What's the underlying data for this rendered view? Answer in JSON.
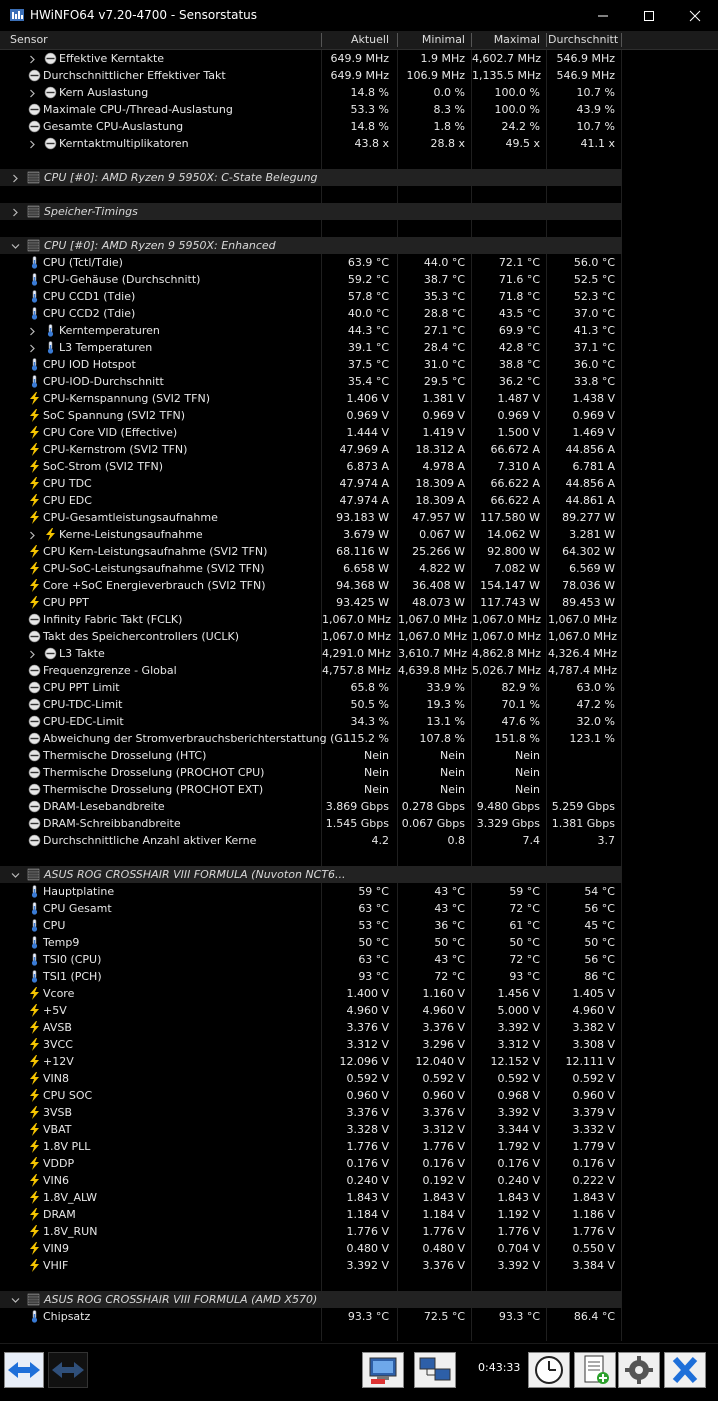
{
  "window": {
    "title": "HWiNFO64 v7.20-4700 - Sensorstatus"
  },
  "columns": [
    "Sensor",
    "Aktuell",
    "Minimal",
    "Maximal",
    "Durchschnitt"
  ],
  "rows": [
    {
      "type": "sensor",
      "indent": 2,
      "expand": true,
      "icon": "clock",
      "name": "Effektive Kerntakte",
      "values": [
        "649.9 MHz",
        "1.9 MHz",
        "4,602.7 MHz",
        "546.9 MHz"
      ]
    },
    {
      "type": "sensor",
      "indent": 1,
      "expand": false,
      "icon": "clock",
      "name": "Durchschnittlicher Effektiver Takt",
      "values": [
        "649.9 MHz",
        "106.9 MHz",
        "1,135.5 MHz",
        "546.9 MHz"
      ]
    },
    {
      "type": "sensor",
      "indent": 2,
      "expand": true,
      "icon": "clock",
      "name": "Kern Auslastung",
      "values": [
        "14.8 %",
        "0.0 %",
        "100.0 %",
        "10.7 %"
      ]
    },
    {
      "type": "sensor",
      "indent": 1,
      "expand": false,
      "icon": "clock",
      "name": "Maximale CPU-/Thread-Auslastung",
      "values": [
        "53.3 %",
        "8.3 %",
        "100.0 %",
        "43.9 %"
      ]
    },
    {
      "type": "sensor",
      "indent": 1,
      "expand": false,
      "icon": "clock",
      "name": "Gesamte CPU-Auslastung",
      "values": [
        "14.8 %",
        "1.8 %",
        "24.2 %",
        "10.7 %"
      ]
    },
    {
      "type": "sensor",
      "indent": 2,
      "expand": true,
      "icon": "clock",
      "name": "Kerntaktmultiplikatoren",
      "values": [
        "43.8 x",
        "28.8 x",
        "49.5 x",
        "41.1 x"
      ]
    },
    {
      "type": "blank"
    },
    {
      "type": "group",
      "expanded": false,
      "name": "CPU [#0]: AMD Ryzen 9 5950X: C-State Belegung"
    },
    {
      "type": "blank"
    },
    {
      "type": "group",
      "expanded": false,
      "name": "Speicher-Timings"
    },
    {
      "type": "blank"
    },
    {
      "type": "group",
      "expanded": true,
      "name": "CPU [#0]: AMD Ryzen 9 5950X: Enhanced"
    },
    {
      "type": "sensor",
      "indent": 1,
      "expand": false,
      "icon": "temp",
      "name": "CPU (Tctl/Tdie)",
      "values": [
        "63.9 °C",
        "44.0 °C",
        "72.1 °C",
        "56.0 °C"
      ]
    },
    {
      "type": "sensor",
      "indent": 1,
      "expand": false,
      "icon": "temp",
      "name": "CPU-Gehäuse (Durchschnitt)",
      "values": [
        "59.2 °C",
        "38.7 °C",
        "71.6 °C",
        "52.5 °C"
      ]
    },
    {
      "type": "sensor",
      "indent": 1,
      "expand": false,
      "icon": "temp",
      "name": "CPU CCD1 (Tdie)",
      "values": [
        "57.8 °C",
        "35.3 °C",
        "71.8 °C",
        "52.3 °C"
      ]
    },
    {
      "type": "sensor",
      "indent": 1,
      "expand": false,
      "icon": "temp",
      "name": "CPU CCD2 (Tdie)",
      "values": [
        "40.0 °C",
        "28.8 °C",
        "43.5 °C",
        "37.0 °C"
      ]
    },
    {
      "type": "sensor",
      "indent": 2,
      "expand": true,
      "icon": "temp",
      "name": "Kerntemperaturen",
      "values": [
        "44.3 °C",
        "27.1 °C",
        "69.9 °C",
        "41.3 °C"
      ]
    },
    {
      "type": "sensor",
      "indent": 2,
      "expand": true,
      "icon": "temp",
      "name": "L3 Temperaturen",
      "values": [
        "39.1 °C",
        "28.4 °C",
        "42.8 °C",
        "37.1 °C"
      ]
    },
    {
      "type": "sensor",
      "indent": 1,
      "expand": false,
      "icon": "temp",
      "name": "CPU IOD Hotspot",
      "values": [
        "37.5 °C",
        "31.0 °C",
        "38.8 °C",
        "36.0 °C"
      ]
    },
    {
      "type": "sensor",
      "indent": 1,
      "expand": false,
      "icon": "temp",
      "name": "CPU-IOD-Durchschnitt",
      "values": [
        "35.4 °C",
        "29.5 °C",
        "36.2 °C",
        "33.8 °C"
      ]
    },
    {
      "type": "sensor",
      "indent": 1,
      "expand": false,
      "icon": "bolt",
      "name": "CPU-Kernspannung (SVI2 TFN)",
      "values": [
        "1.406 V",
        "1.381 V",
        "1.487 V",
        "1.438 V"
      ]
    },
    {
      "type": "sensor",
      "indent": 1,
      "expand": false,
      "icon": "bolt",
      "name": "SoC Spannung (SVI2 TFN)",
      "values": [
        "0.969 V",
        "0.969 V",
        "0.969 V",
        "0.969 V"
      ]
    },
    {
      "type": "sensor",
      "indent": 1,
      "expand": false,
      "icon": "bolt",
      "name": "CPU Core VID (Effective)",
      "values": [
        "1.444 V",
        "1.419 V",
        "1.500 V",
        "1.469 V"
      ]
    },
    {
      "type": "sensor",
      "indent": 1,
      "expand": false,
      "icon": "bolt",
      "name": "CPU-Kernstrom (SVI2 TFN)",
      "values": [
        "47.969 A",
        "18.312 A",
        "66.672 A",
        "44.856 A"
      ]
    },
    {
      "type": "sensor",
      "indent": 1,
      "expand": false,
      "icon": "bolt",
      "name": "SoC-Strom (SVI2 TFN)",
      "values": [
        "6.873 A",
        "4.978 A",
        "7.310 A",
        "6.781 A"
      ]
    },
    {
      "type": "sensor",
      "indent": 1,
      "expand": false,
      "icon": "bolt",
      "name": "CPU TDC",
      "values": [
        "47.974 A",
        "18.309 A",
        "66.622 A",
        "44.856 A"
      ]
    },
    {
      "type": "sensor",
      "indent": 1,
      "expand": false,
      "icon": "bolt",
      "name": "CPU EDC",
      "values": [
        "47.974 A",
        "18.309 A",
        "66.622 A",
        "44.861 A"
      ]
    },
    {
      "type": "sensor",
      "indent": 1,
      "expand": false,
      "icon": "bolt",
      "name": "CPU-Gesamtleistungsaufnahme",
      "values": [
        "93.183 W",
        "47.957 W",
        "117.580 W",
        "89.277 W"
      ]
    },
    {
      "type": "sensor",
      "indent": 2,
      "expand": true,
      "icon": "bolt",
      "name": "Kerne-Leistungsaufnahme",
      "values": [
        "3.679 W",
        "0.067 W",
        "14.062 W",
        "3.281 W"
      ]
    },
    {
      "type": "sensor",
      "indent": 1,
      "expand": false,
      "icon": "bolt",
      "name": "CPU Kern-Leistungsaufnahme (SVI2 TFN)",
      "values": [
        "68.116 W",
        "25.266 W",
        "92.800 W",
        "64.302 W"
      ]
    },
    {
      "type": "sensor",
      "indent": 1,
      "expand": false,
      "icon": "bolt",
      "name": "CPU-SoC-Leistungsaufnahme (SVI2 TFN)",
      "values": [
        "6.658 W",
        "4.822 W",
        "7.082 W",
        "6.569 W"
      ]
    },
    {
      "type": "sensor",
      "indent": 1,
      "expand": false,
      "icon": "bolt",
      "name": "Core +SoC Energieverbrauch (SVI2 TFN)",
      "values": [
        "94.368 W",
        "36.408 W",
        "154.147 W",
        "78.036 W"
      ]
    },
    {
      "type": "sensor",
      "indent": 1,
      "expand": false,
      "icon": "bolt",
      "name": "CPU PPT",
      "values": [
        "93.425 W",
        "48.073 W",
        "117.743 W",
        "89.453 W"
      ]
    },
    {
      "type": "sensor",
      "indent": 1,
      "expand": false,
      "icon": "clock",
      "name": "Infinity Fabric Takt (FCLK)",
      "values": [
        "1,067.0 MHz",
        "1,067.0 MHz",
        "1,067.0 MHz",
        "1,067.0 MHz"
      ]
    },
    {
      "type": "sensor",
      "indent": 1,
      "expand": false,
      "icon": "clock",
      "name": "Takt des Speichercontrollers (UCLK)",
      "values": [
        "1,067.0 MHz",
        "1,067.0 MHz",
        "1,067.0 MHz",
        "1,067.0 MHz"
      ]
    },
    {
      "type": "sensor",
      "indent": 2,
      "expand": true,
      "icon": "clock",
      "name": "L3 Takte",
      "values": [
        "4,291.0 MHz",
        "3,610.7 MHz",
        "4,862.8 MHz",
        "4,326.4 MHz"
      ]
    },
    {
      "type": "sensor",
      "indent": 1,
      "expand": false,
      "icon": "clock",
      "name": "Frequenzgrenze - Global",
      "values": [
        "4,757.8 MHz",
        "4,639.8 MHz",
        "5,026.7 MHz",
        "4,787.4 MHz"
      ]
    },
    {
      "type": "sensor",
      "indent": 1,
      "expand": false,
      "icon": "clock",
      "name": "CPU PPT Limit",
      "values": [
        "65.8 %",
        "33.9 %",
        "82.9 %",
        "63.0 %"
      ]
    },
    {
      "type": "sensor",
      "indent": 1,
      "expand": false,
      "icon": "clock",
      "name": "CPU-TDC-Limit",
      "values": [
        "50.5 %",
        "19.3 %",
        "70.1 %",
        "47.2 %"
      ]
    },
    {
      "type": "sensor",
      "indent": 1,
      "expand": false,
      "icon": "clock",
      "name": "CPU-EDC-Limit",
      "values": [
        "34.3 %",
        "13.1 %",
        "47.6 %",
        "32.0 %"
      ]
    },
    {
      "type": "sensor",
      "indent": 1,
      "expand": false,
      "icon": "clock",
      "name": "Abweichung der Stromverbrauchsberichterstattung (G...",
      "values": [
        "115.2 %",
        "107.8 %",
        "151.8 %",
        "123.1 %"
      ]
    },
    {
      "type": "sensor",
      "indent": 1,
      "expand": false,
      "icon": "clock",
      "name": "Thermische Drosselung (HTC)",
      "values": [
        "Nein",
        "Nein",
        "Nein",
        ""
      ]
    },
    {
      "type": "sensor",
      "indent": 1,
      "expand": false,
      "icon": "clock",
      "name": "Thermische Drosselung (PROCHOT CPU)",
      "values": [
        "Nein",
        "Nein",
        "Nein",
        ""
      ]
    },
    {
      "type": "sensor",
      "indent": 1,
      "expand": false,
      "icon": "clock",
      "name": "Thermische Drosselung (PROCHOT EXT)",
      "values": [
        "Nein",
        "Nein",
        "Nein",
        ""
      ]
    },
    {
      "type": "sensor",
      "indent": 1,
      "expand": false,
      "icon": "clock",
      "name": "DRAM-Lesebandbreite",
      "values": [
        "3.869 Gbps",
        "0.278 Gbps",
        "9.480 Gbps",
        "5.259 Gbps"
      ]
    },
    {
      "type": "sensor",
      "indent": 1,
      "expand": false,
      "icon": "clock",
      "name": "DRAM-Schreibbandbreite",
      "values": [
        "1.545 Gbps",
        "0.067 Gbps",
        "3.329 Gbps",
        "1.381 Gbps"
      ]
    },
    {
      "type": "sensor",
      "indent": 1,
      "expand": false,
      "icon": "clock",
      "name": "Durchschnittliche Anzahl aktiver Kerne",
      "values": [
        "4.2",
        "0.8",
        "7.4",
        "3.7"
      ]
    },
    {
      "type": "blank"
    },
    {
      "type": "group",
      "expanded": true,
      "name": "ASUS ROG CROSSHAIR VIII FORMULA (Nuvoton NCT6..."
    },
    {
      "type": "sensor",
      "indent": 1,
      "expand": false,
      "icon": "temp",
      "name": "Hauptplatine",
      "values": [
        "59 °C",
        "43 °C",
        "59 °C",
        "54 °C"
      ]
    },
    {
      "type": "sensor",
      "indent": 1,
      "expand": false,
      "icon": "temp",
      "name": "CPU Gesamt",
      "values": [
        "63 °C",
        "43 °C",
        "72 °C",
        "56 °C"
      ]
    },
    {
      "type": "sensor",
      "indent": 1,
      "expand": false,
      "icon": "temp",
      "name": "CPU",
      "values": [
        "53 °C",
        "36 °C",
        "61 °C",
        "45 °C"
      ]
    },
    {
      "type": "sensor",
      "indent": 1,
      "expand": false,
      "icon": "temp",
      "name": "Temp9",
      "values": [
        "50 °C",
        "50 °C",
        "50 °C",
        "50 °C"
      ]
    },
    {
      "type": "sensor",
      "indent": 1,
      "expand": false,
      "icon": "temp",
      "name": "TSI0 (CPU)",
      "values": [
        "63 °C",
        "43 °C",
        "72 °C",
        "56 °C"
      ]
    },
    {
      "type": "sensor",
      "indent": 1,
      "expand": false,
      "icon": "temp",
      "name": "TSI1 (PCH)",
      "values": [
        "93 °C",
        "72 °C",
        "93 °C",
        "86 °C"
      ]
    },
    {
      "type": "sensor",
      "indent": 1,
      "expand": false,
      "icon": "bolt",
      "name": "Vcore",
      "values": [
        "1.400 V",
        "1.160 V",
        "1.456 V",
        "1.405 V"
      ]
    },
    {
      "type": "sensor",
      "indent": 1,
      "expand": false,
      "icon": "bolt",
      "name": "+5V",
      "values": [
        "4.960 V",
        "4.960 V",
        "5.000 V",
        "4.960 V"
      ]
    },
    {
      "type": "sensor",
      "indent": 1,
      "expand": false,
      "icon": "bolt",
      "name": "AVSB",
      "values": [
        "3.376 V",
        "3.376 V",
        "3.392 V",
        "3.382 V"
      ]
    },
    {
      "type": "sensor",
      "indent": 1,
      "expand": false,
      "icon": "bolt",
      "name": "3VCC",
      "values": [
        "3.312 V",
        "3.296 V",
        "3.312 V",
        "3.308 V"
      ]
    },
    {
      "type": "sensor",
      "indent": 1,
      "expand": false,
      "icon": "bolt",
      "name": "+12V",
      "values": [
        "12.096 V",
        "12.040 V",
        "12.152 V",
        "12.111 V"
      ]
    },
    {
      "type": "sensor",
      "indent": 1,
      "expand": false,
      "icon": "bolt",
      "name": "VIN8",
      "values": [
        "0.592 V",
        "0.592 V",
        "0.592 V",
        "0.592 V"
      ]
    },
    {
      "type": "sensor",
      "indent": 1,
      "expand": false,
      "icon": "bolt",
      "name": "CPU SOC",
      "values": [
        "0.960 V",
        "0.960 V",
        "0.968 V",
        "0.960 V"
      ]
    },
    {
      "type": "sensor",
      "indent": 1,
      "expand": false,
      "icon": "bolt",
      "name": "3VSB",
      "values": [
        "3.376 V",
        "3.376 V",
        "3.392 V",
        "3.379 V"
      ]
    },
    {
      "type": "sensor",
      "indent": 1,
      "expand": false,
      "icon": "bolt",
      "name": "VBAT",
      "values": [
        "3.328 V",
        "3.312 V",
        "3.344 V",
        "3.332 V"
      ]
    },
    {
      "type": "sensor",
      "indent": 1,
      "expand": false,
      "icon": "bolt",
      "name": "1.8V PLL",
      "values": [
        "1.776 V",
        "1.776 V",
        "1.792 V",
        "1.779 V"
      ]
    },
    {
      "type": "sensor",
      "indent": 1,
      "expand": false,
      "icon": "bolt",
      "name": "VDDP",
      "values": [
        "0.176 V",
        "0.176 V",
        "0.176 V",
        "0.176 V"
      ]
    },
    {
      "type": "sensor",
      "indent": 1,
      "expand": false,
      "icon": "bolt",
      "name": "VIN6",
      "values": [
        "0.240 V",
        "0.192 V",
        "0.240 V",
        "0.222 V"
      ]
    },
    {
      "type": "sensor",
      "indent": 1,
      "expand": false,
      "icon": "bolt",
      "name": "1.8V_ALW",
      "values": [
        "1.843 V",
        "1.843 V",
        "1.843 V",
        "1.843 V"
      ]
    },
    {
      "type": "sensor",
      "indent": 1,
      "expand": false,
      "icon": "bolt",
      "name": "DRAM",
      "values": [
        "1.184 V",
        "1.184 V",
        "1.192 V",
        "1.186 V"
      ]
    },
    {
      "type": "sensor",
      "indent": 1,
      "expand": false,
      "icon": "bolt",
      "name": "1.8V_RUN",
      "values": [
        "1.776 V",
        "1.776 V",
        "1.776 V",
        "1.776 V"
      ]
    },
    {
      "type": "sensor",
      "indent": 1,
      "expand": false,
      "icon": "bolt",
      "name": "VIN9",
      "values": [
        "0.480 V",
        "0.480 V",
        "0.704 V",
        "0.550 V"
      ]
    },
    {
      "type": "sensor",
      "indent": 1,
      "expand": false,
      "icon": "bolt",
      "name": "VHIF",
      "values": [
        "3.392 V",
        "3.376 V",
        "3.392 V",
        "3.384 V"
      ]
    },
    {
      "type": "blank"
    },
    {
      "type": "group",
      "expanded": true,
      "name": "ASUS ROG CROSSHAIR VIII FORMULA (AMD X570)"
    },
    {
      "type": "sensor",
      "indent": 1,
      "expand": false,
      "icon": "temp",
      "name": "Chipsatz",
      "values": [
        "93.3 °C",
        "72.5 °C",
        "93.3 °C",
        "86.4 °C"
      ]
    }
  ],
  "toolbar": {
    "timer": "0:43:33",
    "buttons": [
      "nav-arrows-icon",
      "nav-arrows-disabled-icon",
      "report-icon",
      "network-icon",
      "clock-icon",
      "add-log-icon",
      "settings-icon",
      "close-icon"
    ]
  },
  "colors": {
    "background": "#000000",
    "group_row": "#222222",
    "bolt_icon": "#f5c400",
    "temp_icon": "#3a7bd5",
    "accent_blue": "#1e6fd9"
  }
}
